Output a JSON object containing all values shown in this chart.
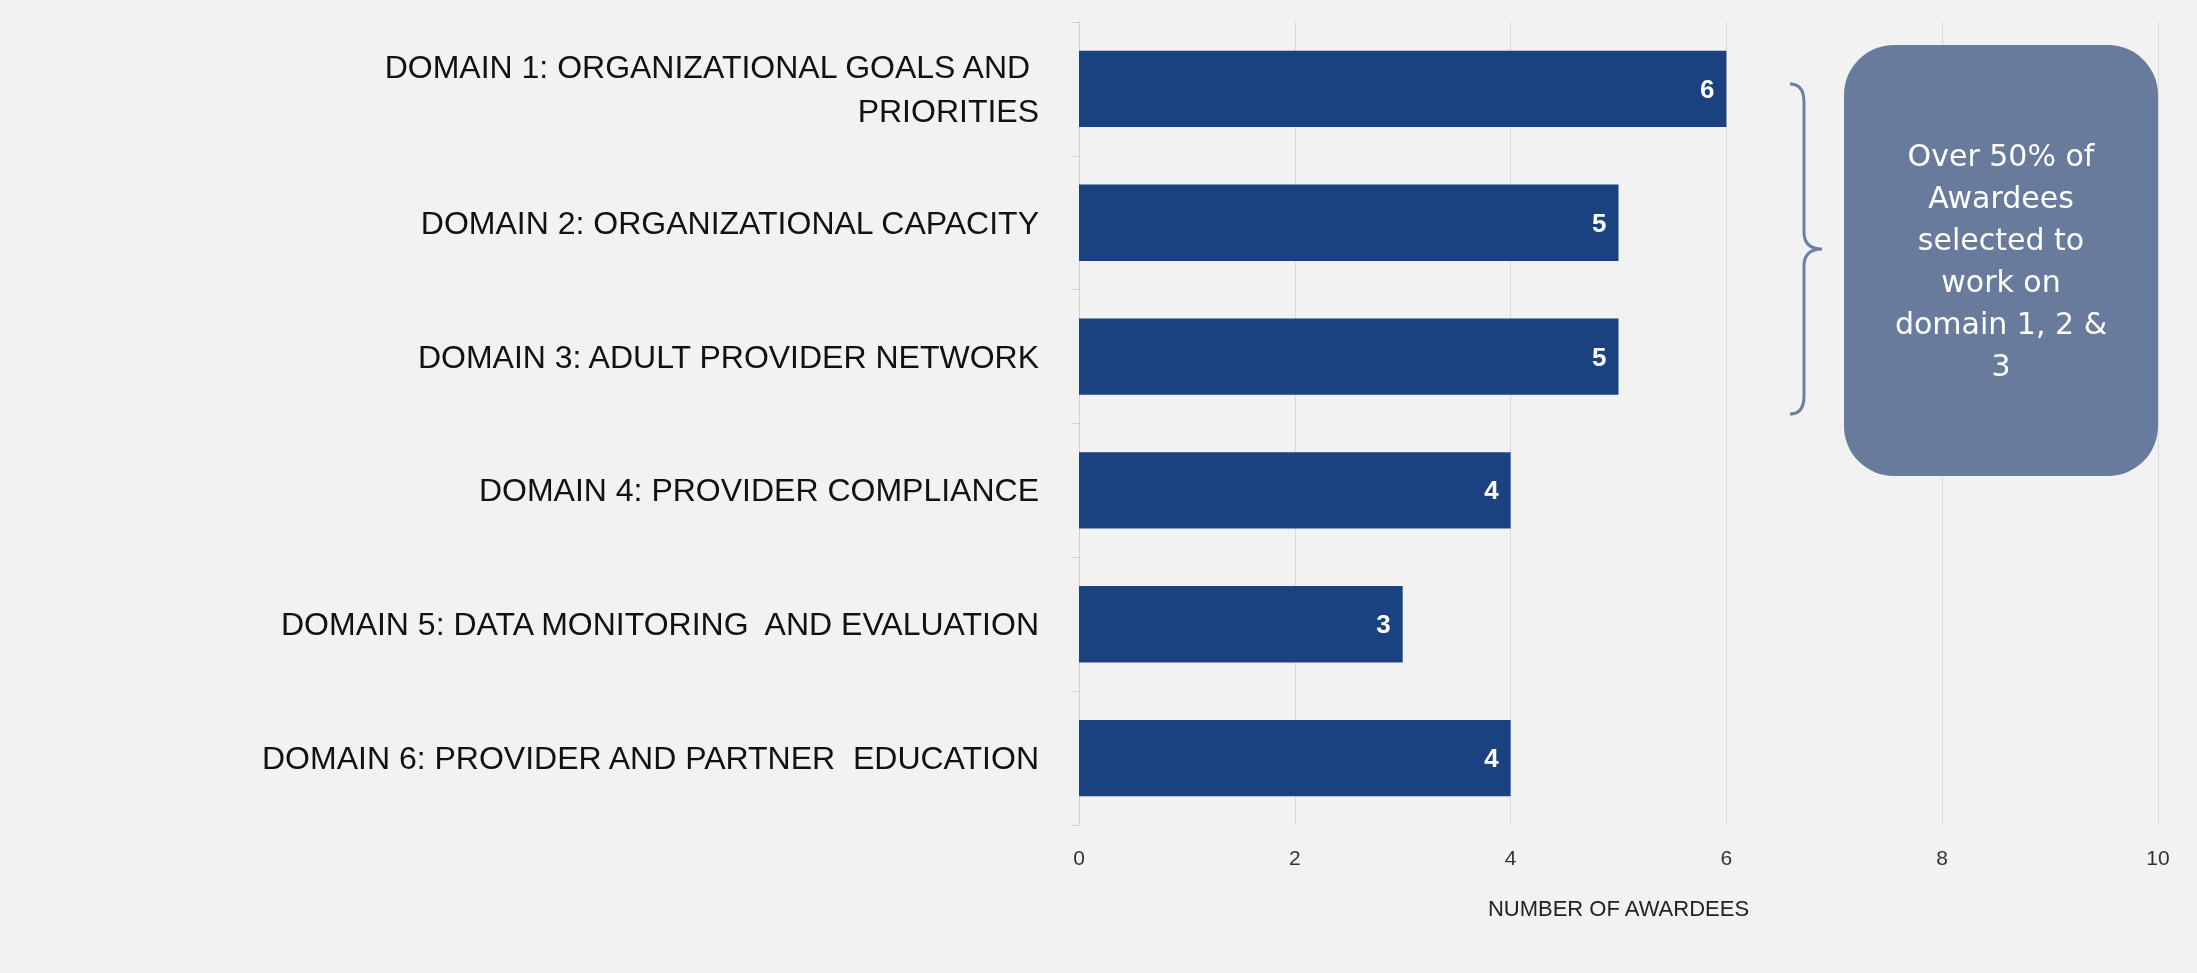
{
  "chart_data": {
    "type": "bar",
    "orientation": "horizontal",
    "categories": [
      "DOMAIN 1: ORGANIZATIONAL GOALS AND PRIORITIES",
      "DOMAIN 2: ORGANIZATIONAL CAPACITY",
      "DOMAIN 3: ADULT PROVIDER NETWORK",
      "DOMAIN 4: PROVIDER COMPLIANCE",
      "DOMAIN 5: DATA MONITORING  AND EVALUATION",
      "DOMAIN 6: PROVIDER AND PARTNER  EDUCATION"
    ],
    "values": [
      6,
      5,
      5,
      4,
      3,
      4
    ],
    "color": "#1a4280",
    "xlabel": "NUMBER OF AWARDEES",
    "xlim": [
      0,
      10
    ],
    "xticks": [
      0,
      2,
      4,
      6,
      8,
      10
    ],
    "grid": "x",
    "data_labels": true,
    "annotations": [
      "Over 50% of Awardees selected to work on domain 1, 2 & 3"
    ]
  }
}
